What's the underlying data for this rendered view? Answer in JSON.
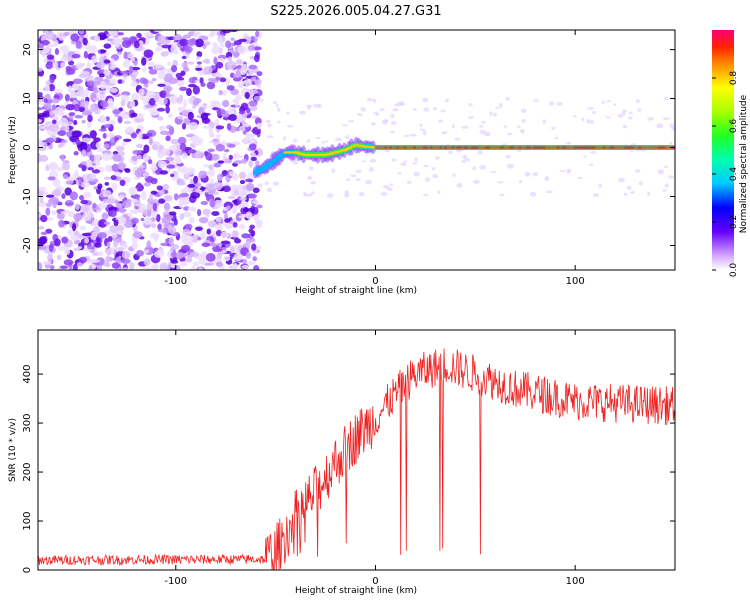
{
  "chart_data": [
    {
      "type": "heatmap",
      "title": "S225.2026.005.04.27.G31",
      "xlabel": "Height of straight line (km)",
      "ylabel": "Frequency (Hz)",
      "xlim": [
        -169,
        150
      ],
      "ylim": [
        -25,
        24
      ],
      "xticks": [
        -100,
        0,
        100
      ],
      "xtick_labels": [
        "-100",
        "0",
        "100"
      ],
      "yticks": [
        -20,
        -10,
        0,
        10,
        20
      ],
      "ytick_labels": [
        "-20",
        "-10",
        "0",
        "10",
        "20"
      ],
      "noise_region_x": [
        -169,
        -58
      ],
      "signal": {
        "x_start": -60,
        "x_end": 150,
        "frequency_trace": [
          {
            "x": -60,
            "f": -5
          },
          {
            "x": -55,
            "f": -4
          },
          {
            "x": -50,
            "f": -2.5
          },
          {
            "x": -45,
            "f": -1
          },
          {
            "x": -40,
            "f": -1
          },
          {
            "x": -35,
            "f": -1.5
          },
          {
            "x": -30,
            "f": -1.5
          },
          {
            "x": -25,
            "f": -1.5
          },
          {
            "x": -20,
            "f": -1
          },
          {
            "x": -15,
            "f": -0.5
          },
          {
            "x": -10,
            "f": 0.5
          },
          {
            "x": -5,
            "f": 0.2
          },
          {
            "x": 0,
            "f": 0
          },
          {
            "x": 150,
            "f": 0
          }
        ]
      },
      "colorbar": {
        "label": "Normalized spectral amplitude",
        "range": [
          0,
          1
        ],
        "ticks": [
          0.0,
          0.2,
          0.4,
          0.6,
          0.8
        ],
        "tick_labels": [
          "0.0",
          "0.2",
          "0.4",
          "0.6",
          "0.8"
        ]
      }
    },
    {
      "type": "line",
      "xlabel": "Height of straight line (km)",
      "ylabel": "SNR (10 * v/v)",
      "xlim": [
        -169,
        150
      ],
      "ylim": [
        0,
        490
      ],
      "xticks": [
        -100,
        0,
        100
      ],
      "xtick_labels": [
        "-100",
        "0",
        "100"
      ],
      "yticks": [
        0,
        100,
        200,
        300,
        400
      ],
      "ytick_labels": [
        "0",
        "100",
        "200",
        "300",
        "400"
      ],
      "series": [
        {
          "name": "SNR",
          "color": "#ee2222",
          "trend": [
            {
              "x": -169,
              "y": 20
            },
            {
              "x": -55,
              "y": 22
            },
            {
              "x": -50,
              "y": 40
            },
            {
              "x": -45,
              "y": 70
            },
            {
              "x": -40,
              "y": 110
            },
            {
              "x": -30,
              "y": 160
            },
            {
              "x": -20,
              "y": 220
            },
            {
              "x": -10,
              "y": 270
            },
            {
              "x": 0,
              "y": 310
            },
            {
              "x": 10,
              "y": 360
            },
            {
              "x": 20,
              "y": 400
            },
            {
              "x": 35,
              "y": 420
            },
            {
              "x": 50,
              "y": 400
            },
            {
              "x": 70,
              "y": 370
            },
            {
              "x": 100,
              "y": 345
            },
            {
              "x": 150,
              "y": 335
            }
          ],
          "dropouts_x_range": [
            0,
            85
          ],
          "dropout_min_y": 30
        }
      ]
    }
  ]
}
